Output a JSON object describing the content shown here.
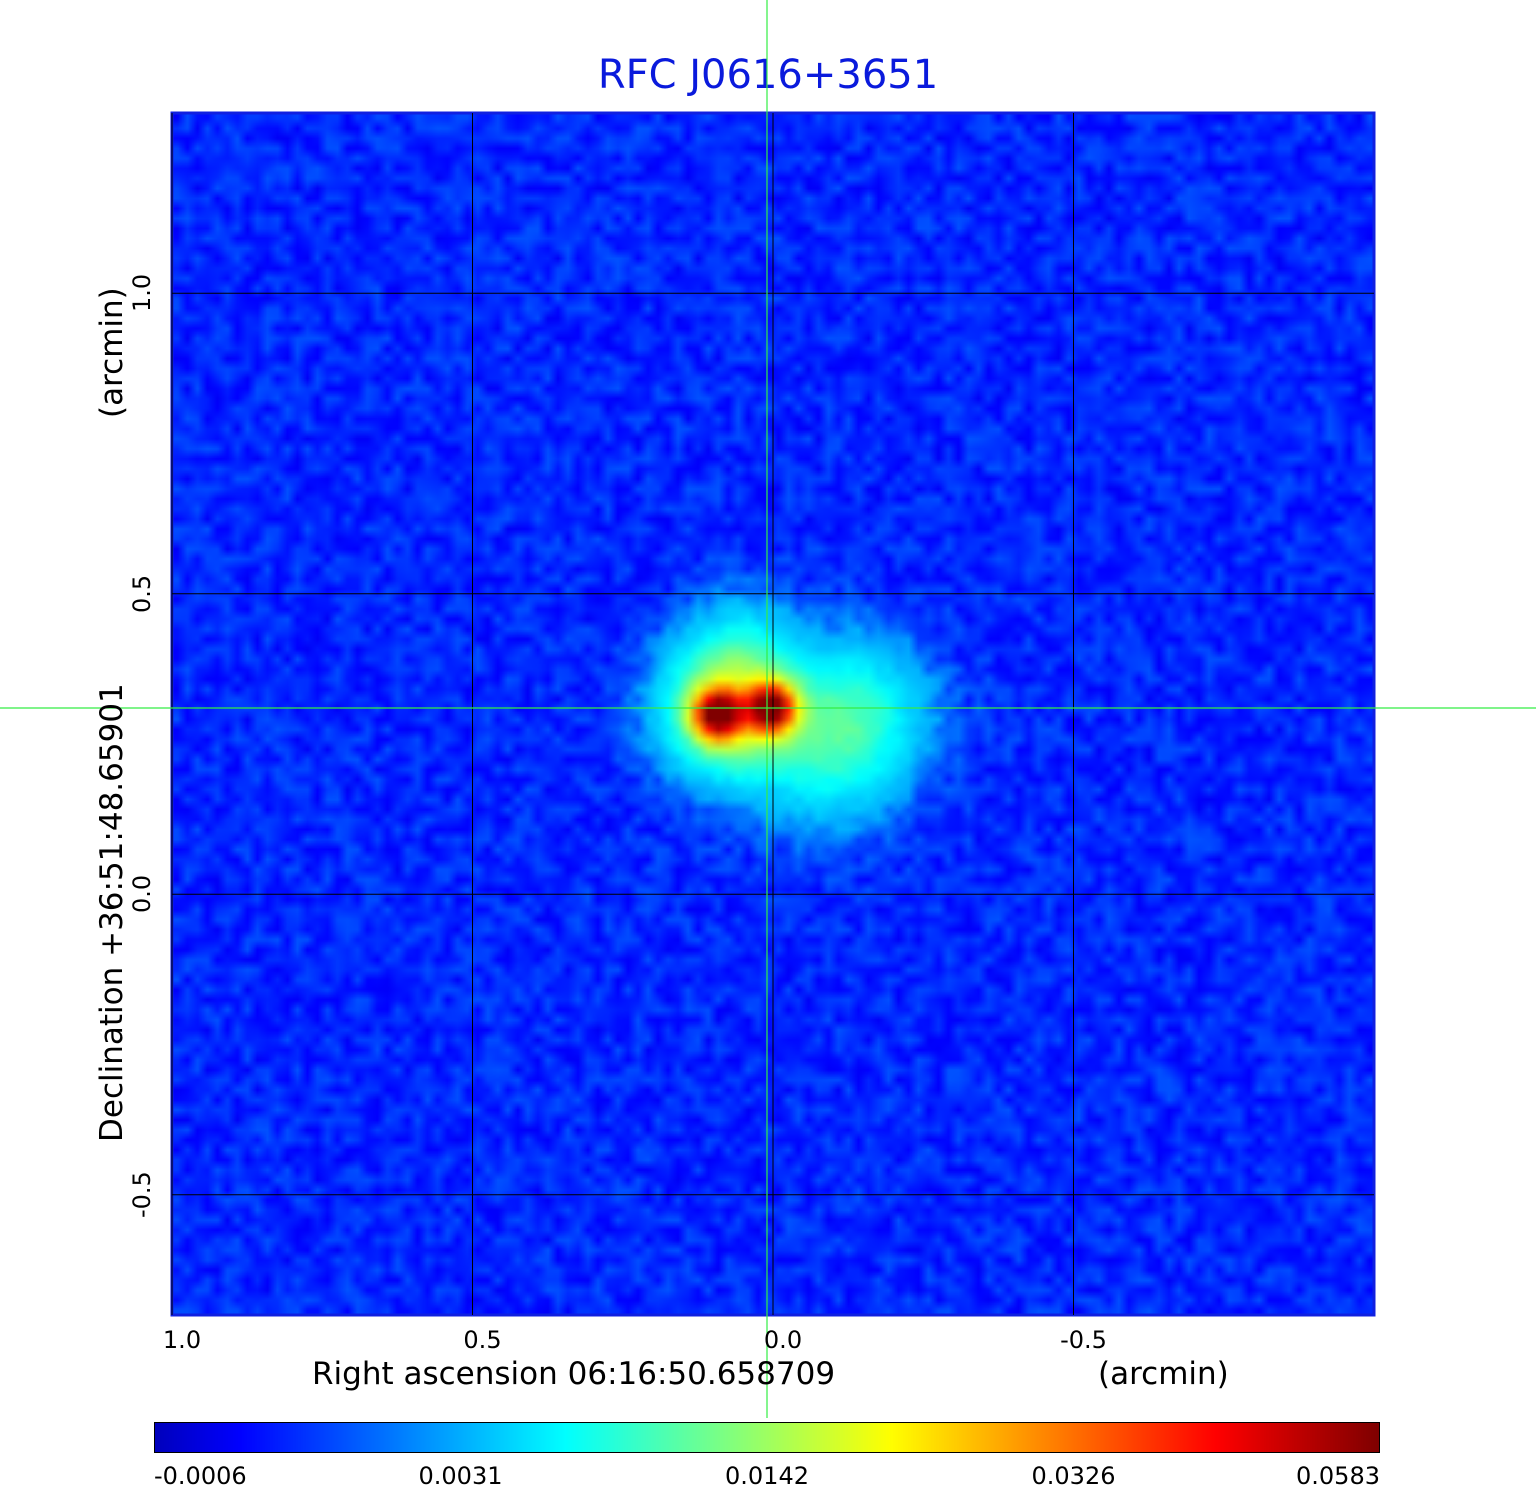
{
  "chart_data": {
    "type": "heatmap",
    "title": "RFC J0616+3651",
    "xlabel": "Right ascension  06:16:50.658709",
    "xlabel_unit": "(arcmin)",
    "ylabel": "Declination  +36:51:48.65901",
    "ylabel_unit": "(arcmin)",
    "x_range": [
      1.0,
      -1.0
    ],
    "y_range": [
      -0.7,
      1.3
    ],
    "x_ticks": [
      {
        "value": 1.0,
        "label": "1.0"
      },
      {
        "value": 0.5,
        "label": "0.5"
      },
      {
        "value": 0.0,
        "label": "0.0"
      },
      {
        "value": -0.5,
        "label": "-0.5"
      }
    ],
    "y_ticks": [
      {
        "value": 1.0,
        "label": "1.0"
      },
      {
        "value": 0.5,
        "label": "0.5"
      },
      {
        "value": 0.0,
        "label": "0.0"
      },
      {
        "value": -0.5,
        "label": "-0.5"
      }
    ],
    "grid": true,
    "crosshair": {
      "x": 0.0,
      "y": 0.31,
      "color": "#33ee44"
    },
    "colormap": "jet",
    "colorbar": {
      "placement": "bottom",
      "ticks": [
        "-0.0006",
        "0.0031",
        "0.0142",
        "0.0326",
        "0.0583"
      ]
    },
    "background_level": -0.0006,
    "sources": [
      {
        "x": 0.09,
        "y": 0.3,
        "peak": 0.0583,
        "size": 0.025
      },
      {
        "x": 0.005,
        "y": 0.31,
        "peak": 0.0583,
        "size": 0.025
      },
      {
        "x": 0.07,
        "y": 0.31,
        "peak": 0.018,
        "size": 0.07
      },
      {
        "x": -0.13,
        "y": 0.3,
        "peak": 0.0075,
        "size": 0.08
      },
      {
        "x": -0.08,
        "y": 0.22,
        "peak": 0.004,
        "size": 0.08
      },
      {
        "x": 0.05,
        "y": 0.42,
        "peak": 0.003,
        "size": 0.06
      }
    ]
  }
}
